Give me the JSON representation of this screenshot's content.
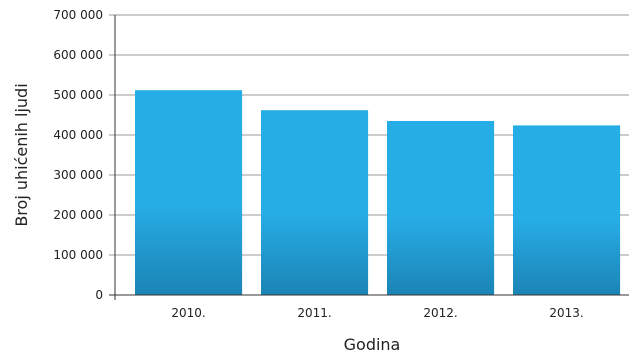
{
  "chart_data": {
    "type": "bar",
    "title": "",
    "xlabel": "Godina",
    "ylabel": "Broj uhićenih ljudi",
    "categories": [
      "2010.",
      "2011.",
      "2012.",
      "2013."
    ],
    "values": [
      512000,
      462000,
      435000,
      424000
    ],
    "ylim": [
      0,
      700000
    ],
    "yticks": [
      {
        "value": 0,
        "label": "0"
      },
      {
        "value": 100000,
        "label": "100 000"
      },
      {
        "value": 200000,
        "label": "200 000"
      },
      {
        "value": 300000,
        "label": "300 000"
      },
      {
        "value": 400000,
        "label": "400 000"
      },
      {
        "value": 500000,
        "label": "500 000"
      },
      {
        "value": 600000,
        "label": "600 000"
      },
      {
        "value": 700000,
        "label": "700 000"
      }
    ],
    "grid": true,
    "legend": "none",
    "colors": {
      "bar_top": "#27ade6",
      "bar_bottom": "#1b84b5",
      "grid": "#999999",
      "axis": "#333333"
    }
  }
}
